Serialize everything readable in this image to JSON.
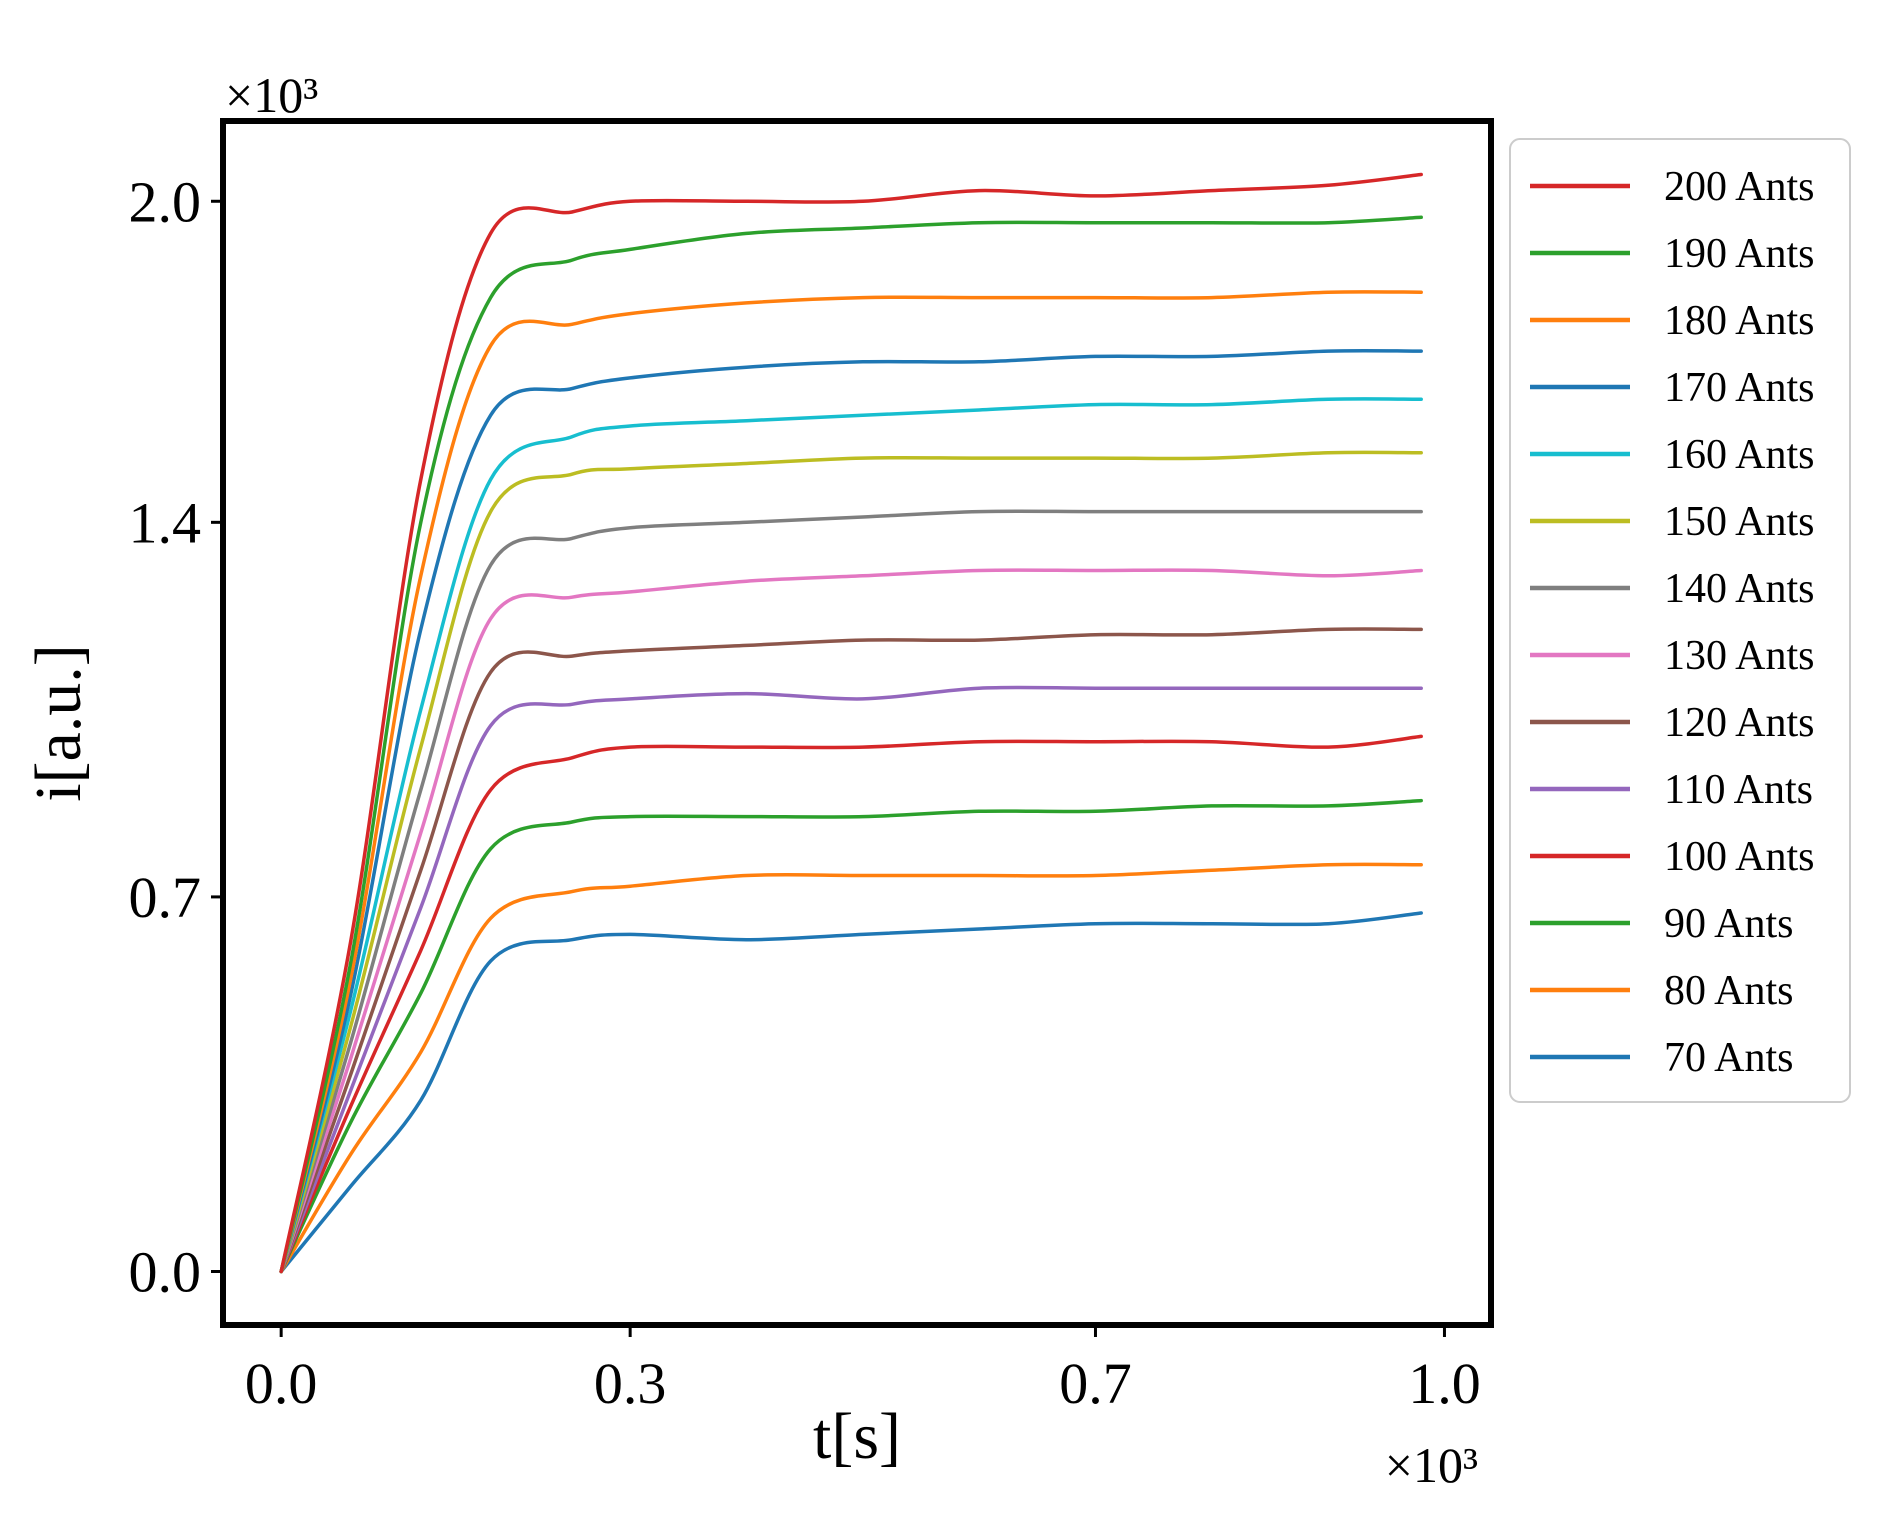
{
  "chart_data": {
    "type": "line",
    "title": "",
    "xlabel": "t[s]",
    "ylabel": "i[a.u.]",
    "x_multiplier": "×10³",
    "y_multiplier": "×10³",
    "xlim": [
      -0.05,
      1.04
    ],
    "ylim": [
      -0.1,
      2.15
    ],
    "x_ticks": [
      0.0,
      0.3,
      0.7,
      1.0
    ],
    "x_tick_labels": [
      "0.0",
      "0.3",
      "0.7",
      "1.0"
    ],
    "y_ticks": [
      0.0,
      0.7,
      1.4,
      2.0
    ],
    "y_tick_labels": [
      "0.0",
      "0.7",
      "1.4",
      "2.0"
    ],
    "grid": false,
    "legend_position": "outside-right",
    "x": [
      0.0,
      0.06,
      0.12,
      0.18,
      0.25,
      0.3,
      0.4,
      0.5,
      0.6,
      0.7,
      0.8,
      0.9,
      0.98
    ],
    "series": [
      {
        "name": "200 Ants",
        "color": "#d62728",
        "values": [
          0.0,
          0.62,
          1.48,
          1.94,
          1.98,
          2.0,
          2.0,
          2.0,
          2.02,
          2.01,
          2.02,
          2.03,
          2.05
        ]
      },
      {
        "name": "190 Ants",
        "color": "#2ca02c",
        "values": [
          0.0,
          0.58,
          1.4,
          1.82,
          1.89,
          1.91,
          1.94,
          1.95,
          1.96,
          1.96,
          1.96,
          1.96,
          1.97
        ]
      },
      {
        "name": "180 Ants",
        "color": "#ff7f0e",
        "values": [
          0.0,
          0.55,
          1.3,
          1.73,
          1.77,
          1.79,
          1.81,
          1.82,
          1.82,
          1.82,
          1.82,
          1.83,
          1.83
        ]
      },
      {
        "name": "170 Ants",
        "color": "#1f77b4",
        "values": [
          0.0,
          0.52,
          1.2,
          1.6,
          1.65,
          1.67,
          1.69,
          1.7,
          1.7,
          1.71,
          1.71,
          1.72,
          1.72
        ]
      },
      {
        "name": "160 Ants",
        "color": "#17becf",
        "values": [
          0.0,
          0.49,
          1.05,
          1.48,
          1.56,
          1.58,
          1.59,
          1.6,
          1.61,
          1.62,
          1.62,
          1.63,
          1.63
        ]
      },
      {
        "name": "150 Ants",
        "color": "#bcbd22",
        "values": [
          0.0,
          0.46,
          0.98,
          1.42,
          1.49,
          1.5,
          1.51,
          1.52,
          1.52,
          1.52,
          1.52,
          1.53,
          1.53
        ]
      },
      {
        "name": "140 Ants",
        "color": "#7f7f7f",
        "values": [
          0.0,
          0.43,
          0.9,
          1.32,
          1.37,
          1.39,
          1.4,
          1.41,
          1.42,
          1.42,
          1.42,
          1.42,
          1.42
        ]
      },
      {
        "name": "130 Ants",
        "color": "#e377c2",
        "values": [
          0.0,
          0.4,
          0.82,
          1.22,
          1.26,
          1.27,
          1.29,
          1.3,
          1.31,
          1.31,
          1.31,
          1.3,
          1.31
        ]
      },
      {
        "name": "120 Ants",
        "color": "#8c564b",
        "values": [
          0.0,
          0.37,
          0.75,
          1.12,
          1.15,
          1.16,
          1.17,
          1.18,
          1.18,
          1.19,
          1.19,
          1.2,
          1.2
        ]
      },
      {
        "name": "110 Ants",
        "color": "#9467bd",
        "values": [
          0.0,
          0.34,
          0.68,
          1.02,
          1.06,
          1.07,
          1.08,
          1.07,
          1.09,
          1.09,
          1.09,
          1.09,
          1.09
        ]
      },
      {
        "name": "100 Ants",
        "color": "#d62728",
        "values": [
          0.0,
          0.31,
          0.6,
          0.9,
          0.96,
          0.98,
          0.98,
          0.98,
          0.99,
          0.99,
          0.99,
          0.98,
          1.0
        ]
      },
      {
        "name": "90 Ants",
        "color": "#2ca02c",
        "values": [
          0.0,
          0.28,
          0.52,
          0.79,
          0.84,
          0.85,
          0.85,
          0.85,
          0.86,
          0.86,
          0.87,
          0.87,
          0.88
        ]
      },
      {
        "name": "80 Ants",
        "color": "#ff7f0e",
        "values": [
          0.0,
          0.22,
          0.41,
          0.66,
          0.71,
          0.72,
          0.74,
          0.74,
          0.74,
          0.74,
          0.75,
          0.76,
          0.76
        ]
      },
      {
        "name": "70 Ants",
        "color": "#1f77b4",
        "values": [
          0.0,
          0.16,
          0.32,
          0.58,
          0.62,
          0.63,
          0.62,
          0.63,
          0.64,
          0.65,
          0.65,
          0.65,
          0.67
        ]
      }
    ]
  }
}
